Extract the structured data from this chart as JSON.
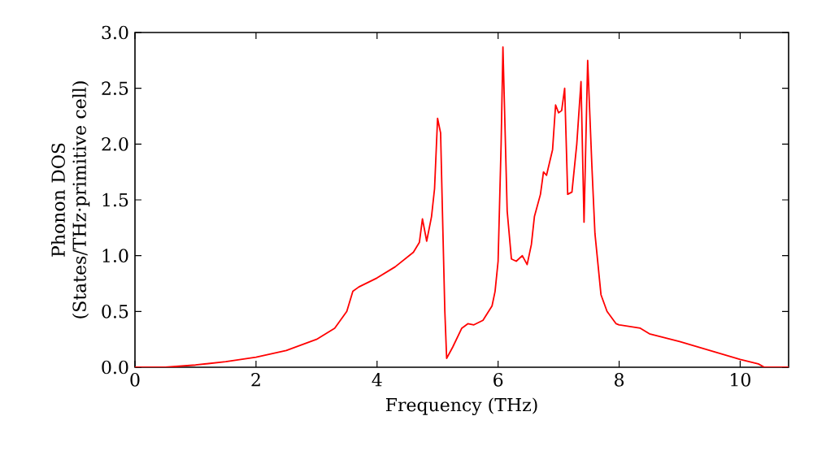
{
  "chart_data": {
    "type": "line",
    "xlabel": "Frequency (THz)",
    "ylabel": "Phonon DOS (States/THz·primitive cell)",
    "xlim": [
      0,
      10.8
    ],
    "ylim": [
      0,
      3.0
    ],
    "xticks": [
      0,
      2,
      4,
      6,
      8,
      10
    ],
    "yticks": [
      {
        "value": 0,
        "label": "0.0"
      },
      {
        "value": 0.5,
        "label": "0.5"
      },
      {
        "value": 1.0,
        "label": "1.0"
      },
      {
        "value": 1.5,
        "label": "1.5"
      },
      {
        "value": 2.0,
        "label": "2.0"
      },
      {
        "value": 2.5,
        "label": "2.5"
      },
      {
        "value": 3.0,
        "label": "3.0"
      }
    ],
    "grid": false,
    "marker": "none",
    "line_style": "solid",
    "series": [
      {
        "color": "#ff0000",
        "x": [
          0,
          0.5,
          1,
          1.5,
          2,
          2.5,
          3,
          3.3,
          3.5,
          3.6,
          3.7,
          4,
          4.3,
          4.6,
          4.7,
          4.75,
          4.82,
          4.9,
          4.95,
          5.0,
          5.05,
          5.08,
          5.12,
          5.15,
          5.25,
          5.4,
          5.5,
          5.6,
          5.75,
          5.9,
          5.95,
          6.0,
          6.05,
          6.08,
          6.15,
          6.22,
          6.3,
          6.4,
          6.48,
          6.55,
          6.6,
          6.7,
          6.75,
          6.8,
          6.9,
          6.95,
          7.0,
          7.05,
          7.1,
          7.15,
          7.22,
          7.3,
          7.37,
          7.42,
          7.48,
          7.55,
          7.6,
          7.7,
          7.8,
          7.95,
          8.0,
          8.35,
          8.5,
          9,
          9.5,
          10,
          10.3,
          10.4,
          10.8
        ],
        "values": [
          0,
          0.0,
          0.02,
          0.05,
          0.09,
          0.15,
          0.25,
          0.35,
          0.5,
          0.68,
          0.72,
          0.8,
          0.9,
          1.03,
          1.12,
          1.33,
          1.13,
          1.35,
          1.6,
          2.23,
          2.1,
          1.4,
          0.5,
          0.08,
          0.18,
          0.35,
          0.39,
          0.38,
          0.42,
          0.55,
          0.68,
          0.95,
          2.0,
          2.87,
          1.4,
          0.97,
          0.95,
          1.0,
          0.92,
          1.1,
          1.35,
          1.55,
          1.75,
          1.72,
          1.95,
          2.35,
          2.28,
          2.3,
          2.5,
          1.55,
          1.57,
          2.0,
          2.56,
          1.3,
          2.75,
          1.8,
          1.2,
          0.65,
          0.5,
          0.39,
          0.38,
          0.35,
          0.3,
          0.23,
          0.15,
          0.07,
          0.03,
          0,
          0
        ]
      }
    ]
  }
}
